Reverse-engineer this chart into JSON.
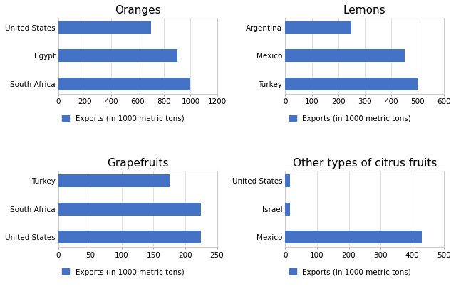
{
  "charts": [
    {
      "title": "Oranges",
      "categories": [
        "United States",
        "Egypt",
        "South Africa"
      ],
      "values": [
        700,
        900,
        1000
      ],
      "xlim": [
        0,
        1200
      ],
      "xticks": [
        0,
        200,
        400,
        600,
        800,
        1000,
        1200
      ],
      "row": 0,
      "col": 0
    },
    {
      "title": "Lemons",
      "categories": [
        "Argentina",
        "Mexico",
        "Turkey"
      ],
      "values": [
        250,
        450,
        500
      ],
      "xlim": [
        0,
        600
      ],
      "xticks": [
        0,
        100,
        200,
        300,
        400,
        500,
        600
      ],
      "row": 0,
      "col": 1
    },
    {
      "title": "Grapefruits",
      "categories": [
        "Turkey",
        "South Africa",
        "United States"
      ],
      "values": [
        175,
        225,
        225
      ],
      "xlim": [
        0,
        250
      ],
      "xticks": [
        0,
        50,
        100,
        150,
        200,
        250
      ],
      "row": 1,
      "col": 0
    },
    {
      "title": "Other types of citrus fruits",
      "categories": [
        "United States",
        "Israel",
        "Mexico"
      ],
      "values": [
        15,
        15,
        430
      ],
      "xlim": [
        0,
        500
      ],
      "xticks": [
        0,
        100,
        200,
        300,
        400,
        500
      ],
      "row": 1,
      "col": 1
    }
  ],
  "bar_color": "#4472c4",
  "legend_label": "Exports (in 1000 metric tons)",
  "background_color": "#ffffff",
  "panel_background": "#ffffff",
  "title_fontsize": 11,
  "tick_fontsize": 7.5,
  "legend_fontsize": 7.5,
  "bar_height": 0.45
}
